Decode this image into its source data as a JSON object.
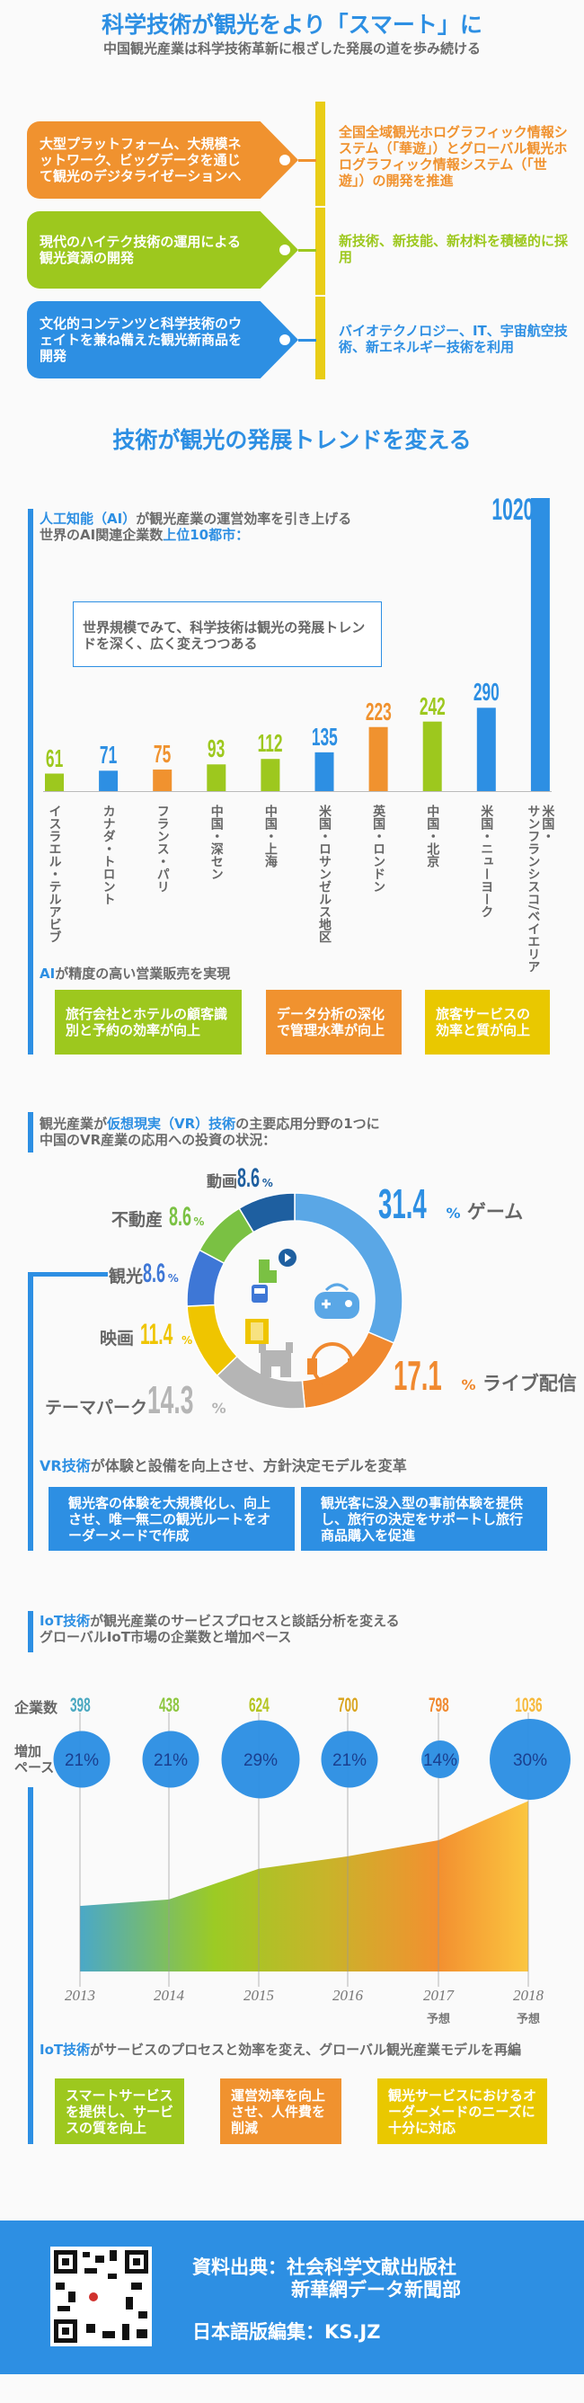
{
  "header": {
    "title": "科学技術が観光をより「スマート」に",
    "subtitle": "中国観光産業は科学技術革新に根ざした発展の道を歩み続ける"
  },
  "pillars": [
    {
      "tag": "大型プラットフォーム、大規模ネットワーク、ビッグデータを通じて観光のデジタライゼーションへ",
      "detail": "全国全域観光ホログラフィック情報システム（「華遊」）とグローバル観光ホログラフィック情報システム（「世遊」）の開発を推進",
      "color": "#f0922f"
    },
    {
      "tag": "現代のハイテク技術の運用による観光資源の開発",
      "detail": "新技術、新技能、新材料を積極的に採用",
      "color": "#9dc81e"
    },
    {
      "tag": "文化的コンテンツと科学技術のウェイトを兼ね備えた観光新商品を開発",
      "detail": "バイオテクノロジー、IT、宇宙航空技術、新エネルギー技術を利用",
      "color": "#2d8fe3"
    }
  ],
  "section2": {
    "heading": "技術が観光の発展トレンドを変える"
  },
  "ai": {
    "title_a": "人工知能（AI）",
    "title_b": "が観光産業の運営効率を引き上げる",
    "title_c": "世界のAI関連企業数",
    "title_d": "上位10都市：",
    "note": "世界規模でみて、科学技術は観光の発展トレンドを深く、広く変えつつある",
    "sub_a": "AI",
    "sub_b": "が精度の高い営業販売を実現",
    "boxes": [
      {
        "text": "旅行会社とホテルの顧客識別と予約の効率が向上",
        "color": "#9dc81e"
      },
      {
        "text": "データ分析の深化で管理水準が向上",
        "color": "#f0922f"
      },
      {
        "text": "旅客サービスの効率と質が向上",
        "color": "#e9c800"
      }
    ]
  },
  "vr": {
    "title_a": "観光産業が",
    "title_b": "仮想現実（VR）技術",
    "title_c": "の主要応用分野の1つに",
    "title_d": "中国のVR産業の応用への投資の状況：",
    "sub_a": "VR技術",
    "sub_b": "が体験と設備を向上させ、方針決定モデルを変革",
    "boxes": [
      "観光客の体験を大規模化し、向上させ、唯一無二の観光ルートをオーダーメードで作成",
      "観光客に没入型の事前体験を提供し、旅行の決定をサポートし旅行商品購入を促進"
    ],
    "unit": "%"
  },
  "iot": {
    "title_a": "IoT技術",
    "title_b": "が観光産業のサービスプロセスと談話分析を変える",
    "title_c": "グローバルIoT市場の企業数と増加ペース",
    "row1": "企業数",
    "row2a": "増加",
    "row2b": "ペース",
    "forecast": "予想",
    "sub_a": "IoT技術",
    "sub_b": "がサービスのプロセスと効率を変え、グローバル観光産業モデルを再編",
    "boxes": [
      {
        "text": "スマートサービスを提供し、サービスの質を向上",
        "color": "#9dc81e"
      },
      {
        "text": "運営効率を向上させ、人件費を削減",
        "color": "#f0922f"
      },
      {
        "text": "観光サービスにおけるオーダーメードのニーズに十分に対応",
        "color": "#e9c800"
      }
    ]
  },
  "footer": {
    "source_label": "資料出典：",
    "source1": "社会科学文献出版社",
    "source2": "新華網データ新聞部",
    "editor": "日本語版編集：KS.JZ"
  },
  "chart_data": [
    {
      "type": "bar",
      "title": "世界のAI関連企業数上位10都市",
      "categories": [
        "イスラエル・テルアビブ",
        "カナダ・トロント",
        "フランス・パリ",
        "中国・深セン",
        "中国・上海",
        "米国・ロサンゼルス地区",
        "英国・ロンドン",
        "中国・北京",
        "米国・ニューヨーク",
        "米国・\nサンフランシスコ/ベイエリア"
      ],
      "values": [
        61,
        71,
        75,
        93,
        112,
        135,
        223,
        242,
        290,
        1020
      ],
      "colors": [
        "#9dc81e",
        "#2d8fe3",
        "#f0922f",
        "#9dc81e",
        "#9dc81e",
        "#2d8fe3",
        "#f0922f",
        "#9dc81e",
        "#2d8fe3",
        "#2d8fe3"
      ],
      "ylim": [
        0,
        1020
      ]
    },
    {
      "type": "pie",
      "title": "中国のVR産業の応用への投資の状況",
      "labels": [
        "ゲーム",
        "ライブ配信",
        "テーマパーク",
        "映画",
        "観光",
        "不動産",
        "動画"
      ],
      "values": [
        31.4,
        17.1,
        14.3,
        11.4,
        8.6,
        8.6,
        8.6
      ],
      "colors": [
        "#5aa7e6",
        "#f0892f",
        "#b5b5b5",
        "#efc500",
        "#3e77d6",
        "#7ac143",
        "#1e5fa0"
      ]
    },
    {
      "type": "area",
      "title": "グローバルIoT市場の企業数と増加ペース",
      "x": [
        "2013",
        "2014",
        "2015",
        "2016",
        "2017",
        "2018"
      ],
      "forecast": [
        false,
        false,
        false,
        false,
        true,
        true
      ],
      "companies": [
        398,
        438,
        624,
        700,
        798,
        1036
      ],
      "growth_pct": [
        21,
        21,
        29,
        21,
        14,
        30
      ],
      "label_colors": [
        "#4aa8c0",
        "#8dc63f",
        "#b5c520",
        "#d9a520",
        "#f0892f",
        "#f6b93b"
      ]
    }
  ]
}
